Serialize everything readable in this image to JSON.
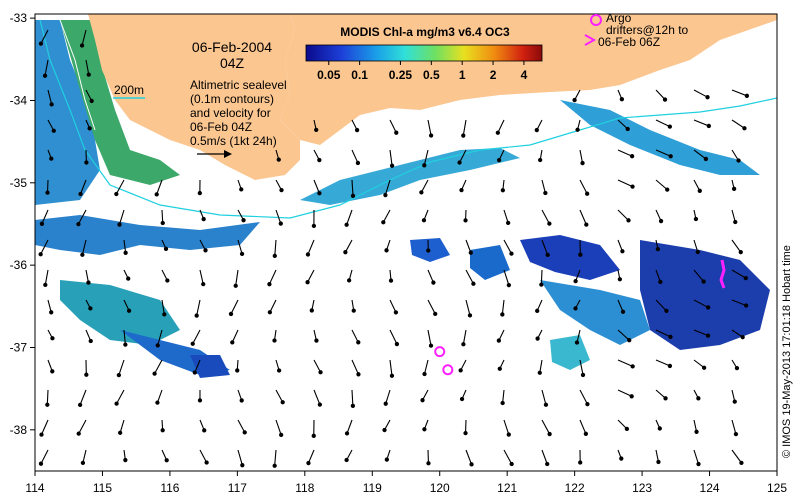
{
  "colorbar": {
    "title": "MODIS Chl-a mg/m3 v6.4 OC3",
    "ticks": [
      "0.05",
      "0.1",
      "0.25",
      "0.5",
      "1",
      "2",
      "4"
    ]
  },
  "date": {
    "line1": "06-Feb-2004",
    "line2": "04Z"
  },
  "contour_label": "200m",
  "description": [
    "Altimetric sealevel",
    "(0.1m contours)",
    "and velocity for",
    "06-Feb 04Z",
    "0.5m/s (1kt 24h)"
  ],
  "argo_legend": {
    "line1": "Argo",
    "line2": "drifters@12h to",
    "line3": "06-Feb 06Z"
  },
  "credit": "© IMOS 19-May-2013 17:01:18 Hobart time",
  "axes": {
    "lon_ticks": [
      "114",
      "115",
      "116",
      "117",
      "118",
      "119",
      "120",
      "121",
      "122",
      "123",
      "124",
      "125"
    ],
    "lat_ticks": [
      "-33",
      "-34",
      "-35",
      "-36",
      "-37",
      "-38"
    ]
  },
  "colors": {
    "land": "#fbc690",
    "contour": "#20d0e0",
    "argo": "#ff20ff",
    "text": "#000000"
  },
  "argo_floats": [
    {
      "lon": 120.0,
      "lat": -37.05
    },
    {
      "lon": 120.12,
      "lat": -37.27
    }
  ]
}
